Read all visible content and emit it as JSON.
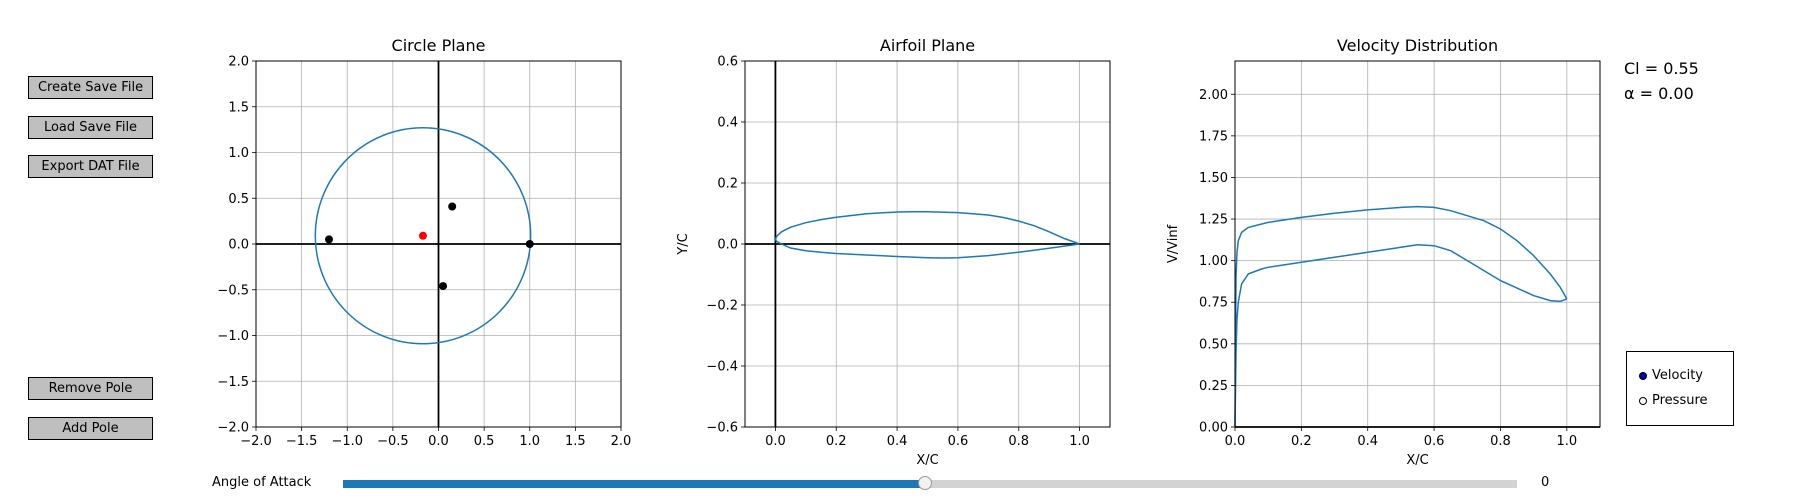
{
  "buttons": {
    "create_save": "Create Save File",
    "load_save": "Load Save File",
    "export_dat": "Export DAT File",
    "remove_pole": "Remove Pole",
    "add_pole": "Add Pole"
  },
  "readouts": {
    "cl": "Cl = 0.55",
    "alpha": "α  = 0.00"
  },
  "legend": {
    "velocity": "Velocity",
    "pressure": "Pressure",
    "selected": "Velocity"
  },
  "slider": {
    "label": "Angle of Attack",
    "value_text": "0",
    "fill_fraction": 0.496
  },
  "colors": {
    "line": "#1f77b4",
    "active_pole": "#ff0000",
    "pole": "#000000",
    "grid": "#b0b0b0"
  },
  "chart_data": [
    {
      "type": "scatter",
      "title": "Circle Plane",
      "xlabel": "",
      "ylabel": "",
      "xlim": [
        -2.0,
        2.0
      ],
      "ylim": [
        -2.0,
        2.0
      ],
      "xticks": [
        "−2.0",
        "−1.5",
        "−1.0",
        "−0.5",
        "0.0",
        "0.5",
        "1.0",
        "1.5",
        "2.0"
      ],
      "yticks": [
        "2.0",
        "1.5",
        "1.0",
        "0.5",
        "0.0",
        "−0.5",
        "−1.0",
        "−1.5",
        "−2.0"
      ],
      "grid": true,
      "circle": {
        "center": [
          -0.17,
          0.09
        ],
        "radius": 1.18
      },
      "points": [
        {
          "x": -1.2,
          "y": 0.05,
          "color": "black"
        },
        {
          "x": 0.15,
          "y": 0.41,
          "color": "black"
        },
        {
          "x": 0.05,
          "y": -0.46,
          "color": "black"
        },
        {
          "x": 1.0,
          "y": 0.0,
          "color": "black"
        },
        {
          "x": -0.17,
          "y": 0.09,
          "color": "red"
        }
      ]
    },
    {
      "type": "line",
      "title": "Airfoil Plane",
      "xlabel": "X/C",
      "ylabel": "Y/C",
      "xlim": [
        -0.1,
        1.1
      ],
      "ylim": [
        -0.6,
        0.6
      ],
      "xticks": [
        "0.0",
        "0.2",
        "0.4",
        "0.6",
        "0.8",
        "1.0"
      ],
      "yticks": [
        "0.6",
        "0.4",
        "0.2",
        "0.0",
        "−0.2",
        "−0.4",
        "−0.6"
      ],
      "grid": true,
      "series": [
        {
          "x": [
            1.0,
            0.95,
            0.9,
            0.85,
            0.8,
            0.75,
            0.7,
            0.6,
            0.5,
            0.45,
            0.4,
            0.3,
            0.2,
            0.15,
            0.1,
            0.05,
            0.02,
            0.005,
            0.0
          ],
          "y": [
            0.0,
            0.018,
            0.04,
            0.06,
            0.075,
            0.087,
            0.095,
            0.103,
            0.106,
            0.106,
            0.105,
            0.099,
            0.088,
            0.08,
            0.07,
            0.055,
            0.04,
            0.026,
            0.015
          ]
        },
        {
          "x": [
            0.0,
            0.005,
            0.02,
            0.05,
            0.1,
            0.15,
            0.2,
            0.3,
            0.4,
            0.5,
            0.55,
            0.6,
            0.7,
            0.8,
            0.9,
            0.95,
            1.0
          ],
          "y": [
            0.015,
            0.008,
            0.0,
            -0.013,
            -0.022,
            -0.027,
            -0.031,
            -0.036,
            -0.041,
            -0.045,
            -0.046,
            -0.045,
            -0.038,
            -0.027,
            -0.014,
            -0.007,
            0.0
          ]
        }
      ]
    },
    {
      "type": "line",
      "title": "Velocity Distribution",
      "xlabel": "X/C",
      "ylabel": "V/Vinf",
      "xlim": [
        0.0,
        1.1
      ],
      "ylim": [
        0.0,
        2.2
      ],
      "xticks": [
        "0.0",
        "0.2",
        "0.4",
        "0.6",
        "0.8",
        "1.0"
      ],
      "yticks": [
        "2.00",
        "1.75",
        "1.50",
        "1.25",
        "1.00",
        "0.75",
        "0.50",
        "0.25",
        "0.00"
      ],
      "grid": true,
      "series": [
        {
          "x": [
            0.0,
            0.003,
            0.006,
            0.01,
            0.02,
            0.04,
            0.1,
            0.2,
            0.3,
            0.4,
            0.5,
            0.55,
            0.6,
            0.65,
            0.7,
            0.75,
            0.8,
            0.85,
            0.9,
            0.95,
            0.98,
            1.0
          ],
          "y": [
            0.0,
            0.9,
            1.05,
            1.12,
            1.17,
            1.2,
            1.23,
            1.26,
            1.285,
            1.305,
            1.32,
            1.325,
            1.32,
            1.3,
            1.27,
            1.24,
            1.19,
            1.12,
            1.03,
            0.92,
            0.84,
            0.77
          ]
        },
        {
          "x": [
            0.0,
            0.003,
            0.006,
            0.01,
            0.02,
            0.04,
            0.08,
            0.1,
            0.2,
            0.3,
            0.4,
            0.5,
            0.55,
            0.6,
            0.65,
            0.7,
            0.8,
            0.9,
            0.95,
            0.98,
            1.0
          ],
          "y": [
            0.0,
            0.45,
            0.65,
            0.75,
            0.86,
            0.92,
            0.95,
            0.96,
            0.99,
            1.02,
            1.05,
            1.08,
            1.095,
            1.09,
            1.06,
            1.0,
            0.88,
            0.79,
            0.76,
            0.755,
            0.77
          ]
        }
      ]
    }
  ]
}
